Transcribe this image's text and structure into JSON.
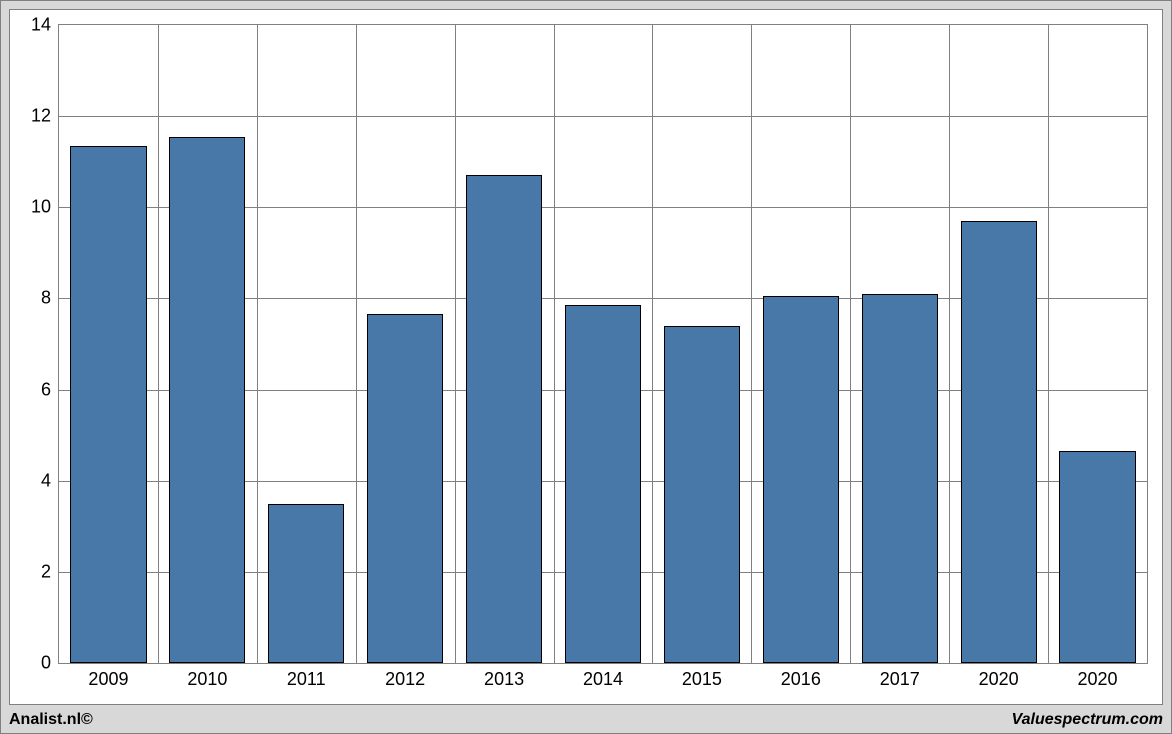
{
  "chart": {
    "type": "bar",
    "categories": [
      "2009",
      "2010",
      "2011",
      "2012",
      "2013",
      "2014",
      "2015",
      "2016",
      "2017",
      "2020",
      "2020"
    ],
    "values": [
      11.35,
      11.55,
      3.5,
      7.65,
      10.7,
      7.85,
      7.4,
      8.05,
      8.1,
      9.7,
      4.65
    ],
    "bar_color": "#4878a8",
    "bar_border_color": "#000000",
    "ylim": [
      0,
      14
    ],
    "ytick_step": 2,
    "yticks": [
      0,
      2,
      4,
      6,
      8,
      10,
      12,
      14
    ],
    "grid_color": "#808080",
    "background_color": "#ffffff",
    "outer_background_color": "#d8d8d8",
    "tick_fontsize": 18,
    "tick_color": "#000000",
    "bar_width_ratio": 0.77
  },
  "footer": {
    "left": "Analist.nl©",
    "right": "Valuespectrum.com"
  }
}
